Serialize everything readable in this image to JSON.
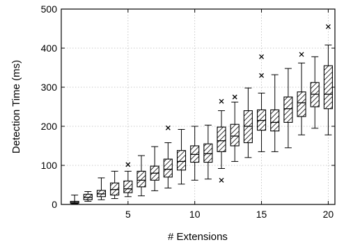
{
  "chart_data": {
    "type": "box",
    "xlabel": "# Extensions",
    "ylabel": "Detection Time (ms)",
    "xlim": [
      0,
      20.5
    ],
    "ylim": [
      0,
      500
    ],
    "xticks": [
      5,
      10,
      15,
      20
    ],
    "yticks": [
      0,
      100,
      200,
      300,
      400,
      500
    ],
    "grid": true,
    "fill_pattern": "diagonal-hatch",
    "boxes": [
      {
        "x": 1,
        "whislo": 2,
        "q1": 3,
        "med": 5,
        "q3": 8,
        "whishi": 24,
        "fliers": []
      },
      {
        "x": 2,
        "whislo": 8,
        "q1": 12,
        "med": 18,
        "q3": 26,
        "whishi": 33,
        "fliers": []
      },
      {
        "x": 3,
        "whislo": 12,
        "q1": 20,
        "med": 27,
        "q3": 36,
        "whishi": 68,
        "fliers": []
      },
      {
        "x": 4,
        "whislo": 15,
        "q1": 24,
        "med": 38,
        "q3": 55,
        "whishi": 85,
        "fliers": []
      },
      {
        "x": 5,
        "whislo": 20,
        "q1": 30,
        "med": 40,
        "q3": 60,
        "whishi": 85,
        "fliers": [
          102
        ]
      },
      {
        "x": 6,
        "whislo": 22,
        "q1": 45,
        "med": 62,
        "q3": 85,
        "whishi": 125,
        "fliers": []
      },
      {
        "x": 7,
        "whislo": 35,
        "q1": 62,
        "med": 80,
        "q3": 98,
        "whishi": 148,
        "fliers": []
      },
      {
        "x": 8,
        "whislo": 42,
        "q1": 70,
        "med": 90,
        "q3": 116,
        "whishi": 158,
        "fliers": [
          196
        ]
      },
      {
        "x": 9,
        "whislo": 52,
        "q1": 88,
        "med": 110,
        "q3": 138,
        "whishi": 192,
        "fliers": []
      },
      {
        "x": 10,
        "whislo": 62,
        "q1": 108,
        "med": 128,
        "q3": 150,
        "whishi": 200,
        "fliers": []
      },
      {
        "x": 11,
        "whislo": 65,
        "q1": 108,
        "med": 130,
        "q3": 155,
        "whishi": 203,
        "fliers": []
      },
      {
        "x": 12,
        "whislo": 92,
        "q1": 135,
        "med": 163,
        "q3": 198,
        "whishi": 240,
        "fliers": [
          264,
          62
        ]
      },
      {
        "x": 13,
        "whislo": 110,
        "q1": 150,
        "med": 175,
        "q3": 205,
        "whishi": 262,
        "fliers": [
          275
        ]
      },
      {
        "x": 14,
        "whislo": 120,
        "q1": 158,
        "med": 200,
        "q3": 240,
        "whishi": 298,
        "fliers": []
      },
      {
        "x": 15,
        "whislo": 135,
        "q1": 190,
        "med": 215,
        "q3": 242,
        "whishi": 285,
        "fliers": [
          330,
          378
        ]
      },
      {
        "x": 16,
        "whislo": 135,
        "q1": 188,
        "med": 210,
        "q3": 242,
        "whishi": 332,
        "fliers": []
      },
      {
        "x": 17,
        "whislo": 145,
        "q1": 210,
        "med": 245,
        "q3": 275,
        "whishi": 348,
        "fliers": []
      },
      {
        "x": 18,
        "whislo": 178,
        "q1": 225,
        "med": 260,
        "q3": 288,
        "whishi": 362,
        "fliers": [
          384
        ]
      },
      {
        "x": 19,
        "whislo": 195,
        "q1": 250,
        "med": 282,
        "q3": 312,
        "whishi": 378,
        "fliers": []
      },
      {
        "x": 20,
        "whislo": 178,
        "q1": 245,
        "med": 282,
        "q3": 355,
        "whishi": 408,
        "fliers": [
          455
        ]
      }
    ]
  }
}
